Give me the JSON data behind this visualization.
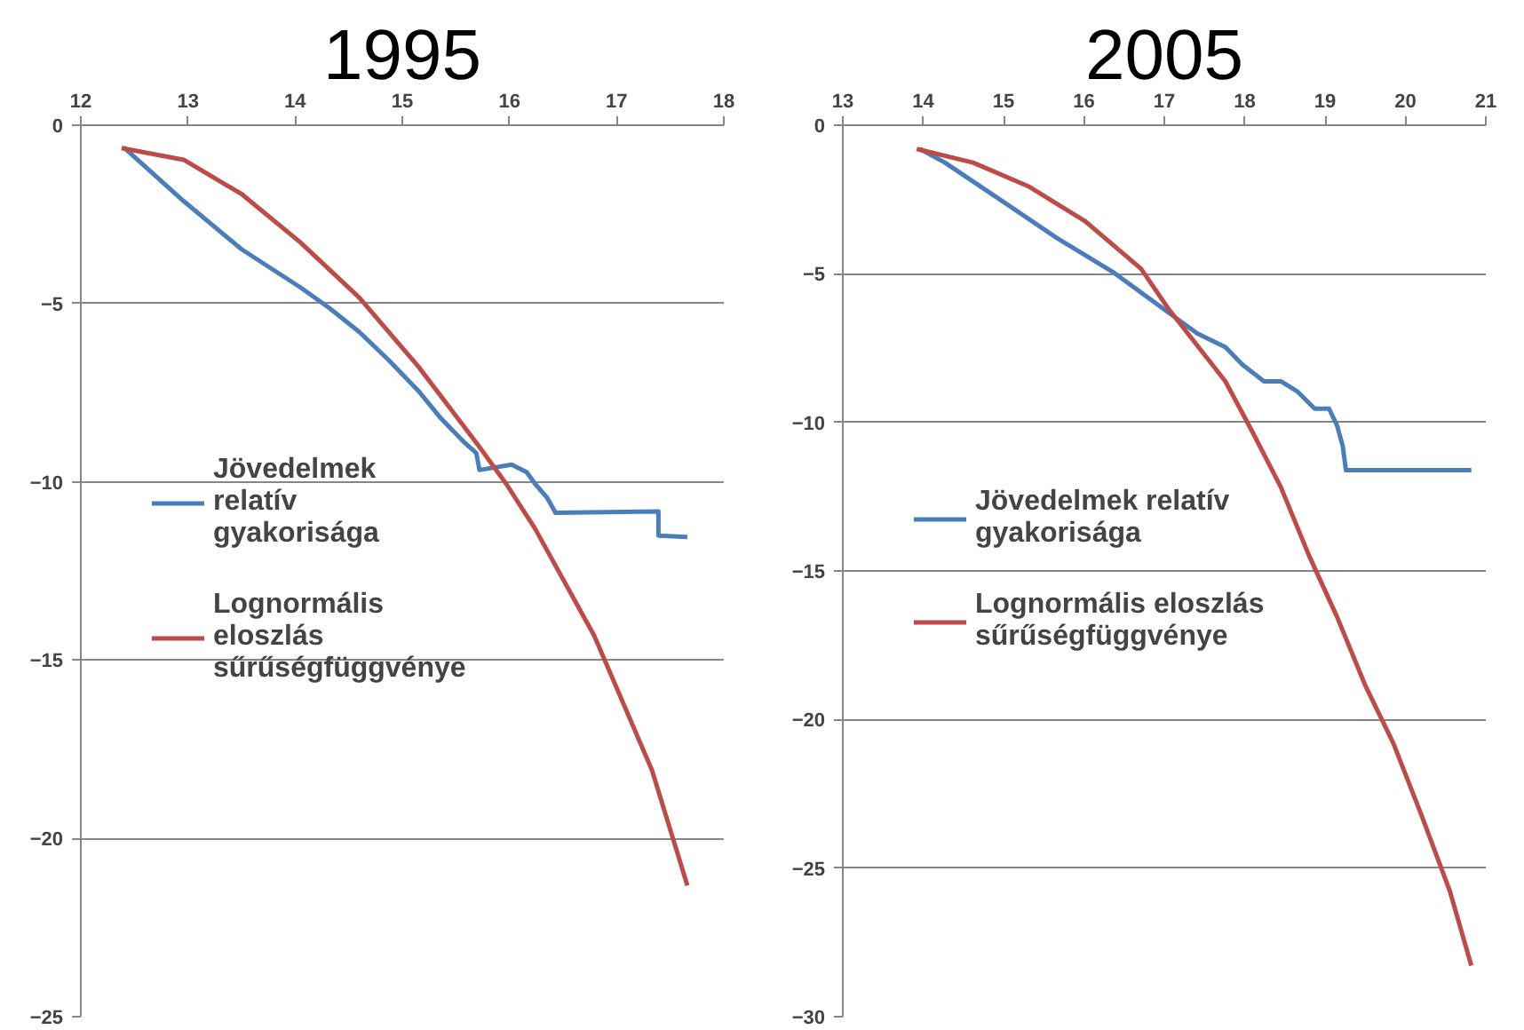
{
  "chart_data": [
    {
      "type": "line",
      "title": "1995",
      "xlim": [
        12,
        18
      ],
      "xticks": [
        12,
        13,
        14,
        15,
        16,
        17,
        18
      ],
      "ylim": [
        -25,
        0
      ],
      "yticks": [
        0,
        -5,
        -10,
        -15,
        -20,
        -25
      ],
      "grid": "y",
      "legend": "left",
      "series": [
        {
          "name": "Jövedelmek relatív gyakorisága",
          "color": "#4a7ebb",
          "x": [
            12.4,
            12.96,
            13.5,
            14.05,
            14.32,
            14.6,
            14.87,
            15.15,
            15.36,
            15.58,
            15.69,
            15.72,
            16.02,
            16.16,
            16.24,
            16.35,
            16.43,
            17.39,
            17.39,
            17.66
          ],
          "values": [
            -0.62,
            -2.13,
            -3.48,
            -4.55,
            -5.13,
            -5.8,
            -6.58,
            -7.45,
            -8.22,
            -8.9,
            -9.19,
            -9.67,
            -9.52,
            -9.73,
            -10.06,
            -10.44,
            -10.87,
            -10.83,
            -11.51,
            -11.55
          ]
        },
        {
          "name": "Lognormális eloszlás sűrűségfüggvénye",
          "color": "#be4b48",
          "x": [
            12.38,
            12.96,
            13.5,
            14.05,
            14.6,
            15.15,
            15.69,
            15.97,
            16.24,
            16.79,
            17.33,
            17.66
          ],
          "values": [
            -0.64,
            -0.97,
            -1.93,
            -3.29,
            -4.84,
            -6.77,
            -8.9,
            -10.06,
            -11.32,
            -14.31,
            -18.09,
            -21.32
          ]
        }
      ]
    },
    {
      "type": "line",
      "title": "2005",
      "xlim": [
        13,
        21
      ],
      "xticks": [
        13,
        14,
        15,
        16,
        17,
        18,
        19,
        20,
        21
      ],
      "ylim": [
        -30,
        0
      ],
      "yticks": [
        0,
        -5,
        -10,
        -15,
        -20,
        -25,
        -30
      ],
      "grid": "y",
      "legend": "left",
      "series": [
        {
          "name": "Jövedelmek relatív gyakorisága",
          "color": "#4a7ebb",
          "x": [
            13.96,
            14.27,
            14.97,
            15.66,
            16.36,
            17.06,
            17.41,
            17.76,
            17.97,
            18.24,
            18.45,
            18.66,
            18.87,
            19.05,
            19.15,
            19.22,
            19.26,
            20.82
          ],
          "values": [
            -0.8,
            -1.26,
            -2.53,
            -3.79,
            -4.94,
            -6.32,
            -7.01,
            -7.47,
            -8.05,
            -8.62,
            -8.62,
            -8.97,
            -9.54,
            -9.54,
            -10.11,
            -10.8,
            -11.61,
            -11.61
          ]
        },
        {
          "name": "Lognormális eloszlás sűrűségfüggvénye",
          "color": "#be4b48",
          "x": [
            13.92,
            14.62,
            15.32,
            16.01,
            16.71,
            17.06,
            17.76,
            18.1,
            18.45,
            18.8,
            19.15,
            19.5,
            19.85,
            20.2,
            20.55,
            20.82
          ],
          "values": [
            -0.8,
            -1.26,
            -2.07,
            -3.22,
            -4.83,
            -6.21,
            -8.62,
            -10.34,
            -12.18,
            -14.48,
            -16.55,
            -18.85,
            -20.8,
            -23.22,
            -25.75,
            -28.28
          ]
        }
      ]
    }
  ]
}
